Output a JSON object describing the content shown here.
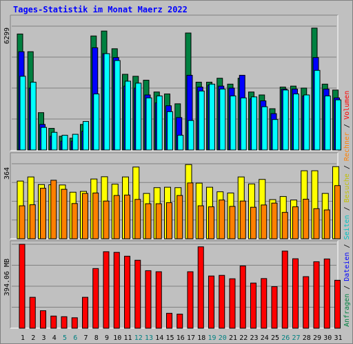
{
  "title": "Tages-Statistik im Monat Maerz 2022",
  "colors": {
    "anfragen": "#008040",
    "dateien": "#0000ff",
    "seiten": "#00ffff",
    "besuche": "#ffff00",
    "rechner": "#ff8000",
    "volumen": "#ff0000",
    "weekend_day_label": "#008080",
    "weekday_day_label": "#000000"
  },
  "chart_data": [
    {
      "type": "bar",
      "panel": "hits",
      "ymax_label": "6299",
      "ylim": [
        0,
        6299
      ],
      "categories": [
        "1",
        "2",
        "3",
        "4",
        "5",
        "6",
        "7",
        "8",
        "9",
        "10",
        "11",
        "12",
        "13",
        "14",
        "15",
        "16",
        "17",
        "18",
        "19",
        "20",
        "21",
        "22",
        "23",
        "24",
        "25",
        "26",
        "27",
        "28",
        "29",
        "30",
        "31"
      ],
      "series": [
        {
          "name": "Anfragen",
          "values": [
            5900,
            5000,
            1900,
            1100,
            700,
            600,
            1300,
            5800,
            6050,
            5150,
            3850,
            3750,
            3550,
            2950,
            2850,
            2350,
            5950,
            3450,
            3450,
            3650,
            3350,
            3650,
            2950,
            2800,
            2100,
            3200,
            3250,
            3150,
            6200,
            3350,
            3050
          ]
        },
        {
          "name": "Dateien",
          "values": [
            5000,
            3150,
            1300,
            700,
            450,
            450,
            950,
            5200,
            4900,
            4700,
            3250,
            3150,
            2800,
            2400,
            2250,
            1650,
            3800,
            3200,
            3300,
            3250,
            3150,
            3800,
            2600,
            2500,
            1850,
            3100,
            3100,
            2750,
            4700,
            3100,
            2650
          ]
        },
        {
          "name": "Seiten",
          "values": [
            3750,
            3450,
            1150,
            900,
            750,
            800,
            1450,
            2850,
            4900,
            4550,
            3500,
            3400,
            2650,
            2750,
            1950,
            750,
            1500,
            3000,
            3350,
            3100,
            2750,
            2650,
            2700,
            2200,
            1550,
            3050,
            2850,
            2800,
            4050,
            2750,
            2550
          ]
        }
      ],
      "legend": [
        "Anfragen",
        "Dateien",
        "Seiten"
      ]
    },
    {
      "type": "bar",
      "panel": "visits",
      "ymax_label": "364",
      "ylim": [
        0,
        364
      ],
      "categories": [
        "1",
        "2",
        "3",
        "4",
        "5",
        "6",
        "7",
        "8",
        "9",
        "10",
        "11",
        "12",
        "13",
        "14",
        "15",
        "16",
        "17",
        "18",
        "19",
        "20",
        "21",
        "22",
        "23",
        "24",
        "25",
        "26",
        "27",
        "28",
        "29",
        "30",
        "31"
      ],
      "series": [
        {
          "name": "Besuche",
          "values": [
            280,
            300,
            263,
            262,
            261,
            226,
            230,
            290,
            301,
            265,
            300,
            348,
            220,
            248,
            250,
            248,
            360,
            270,
            250,
            228,
            222,
            300,
            266,
            288,
            190,
            205,
            188,
            330,
            330,
            220,
            350
          ]
        },
        {
          "name": "Rechner",
          "values": [
            160,
            165,
            245,
            284,
            240,
            171,
            220,
            222,
            183,
            210,
            212,
            191,
            170,
            170,
            175,
            210,
            271,
            160,
            155,
            188,
            157,
            183,
            153,
            164,
            173,
            128,
            155,
            192,
            146,
            140,
            258
          ]
        }
      ],
      "legend": [
        "Besuche",
        "Rechner"
      ]
    },
    {
      "type": "bar",
      "panel": "volume",
      "ymax_label": "394.06 MB",
      "ylim": [
        0,
        394.06
      ],
      "categories": [
        "1",
        "2",
        "3",
        "4",
        "5",
        "6",
        "7",
        "8",
        "9",
        "10",
        "11",
        "12",
        "13",
        "14",
        "15",
        "16",
        "17",
        "18",
        "19",
        "20",
        "21",
        "22",
        "23",
        "24",
        "25",
        "26",
        "27",
        "28",
        "29",
        "30",
        "31"
      ],
      "series": [
        {
          "name": "Volumen",
          "values": [
            394,
            145,
            82,
            57,
            54,
            49,
            145,
            280,
            359,
            356,
            338,
            319,
            270,
            265,
            70,
            66,
            265,
            382,
            245,
            248,
            232,
            292,
            212,
            233,
            195,
            362,
            326,
            242,
            312,
            325,
            225
          ]
        }
      ],
      "legend": [
        "Volumen"
      ]
    }
  ],
  "side_legend": {
    "upper": [
      {
        "text": "Anfragen",
        "color": "#008040"
      },
      {
        "text": " / ",
        "color": "#000000"
      },
      {
        "text": "Dateien",
        "color": "#0000ff"
      },
      {
        "text": " / ",
        "color": "#000000"
      },
      {
        "text": "Seiten",
        "color": "#00c0c0"
      },
      {
        "text": " / ",
        "color": "#000000"
      },
      {
        "text": "Besuche",
        "color": "#c0c000"
      },
      {
        "text": " / ",
        "color": "#000000"
      },
      {
        "text": "Rechner",
        "color": "#ff8000"
      },
      {
        "text": " / ",
        "color": "#000000"
      },
      {
        "text": "Volumen",
        "color": "#ff0000"
      }
    ]
  },
  "weekend_days": [
    "5",
    "6",
    "12",
    "13",
    "19",
    "20",
    "26",
    "27"
  ]
}
